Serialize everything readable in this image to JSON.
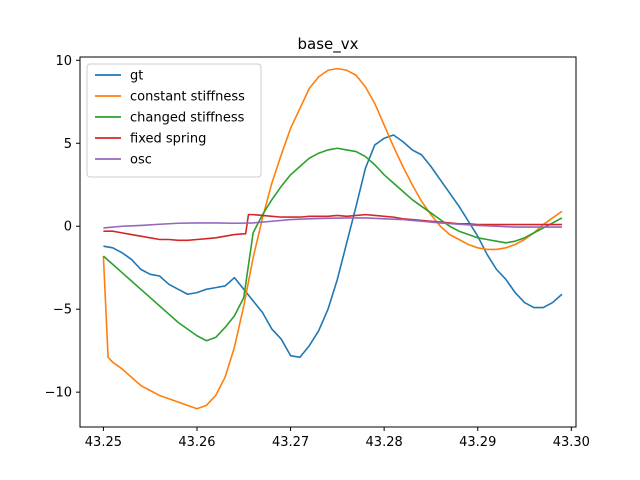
{
  "chart_data": {
    "type": "line",
    "title": "base_vx",
    "xlabel": "",
    "ylabel": "",
    "xlim": [
      43.2475,
      43.3005
    ],
    "ylim": [
      -12.1,
      10.2
    ],
    "xticks": [
      "43.25",
      "43.26",
      "43.27",
      "43.28",
      "43.29",
      "43.30"
    ],
    "xtick_values": [
      43.25,
      43.26,
      43.27,
      43.28,
      43.29,
      43.3
    ],
    "yticks": [
      "10",
      "5",
      "0",
      "−5",
      "−10"
    ],
    "ytick_values": [
      10,
      5,
      0,
      -5,
      -10
    ],
    "grid": false,
    "legend_position": "top-left",
    "series": [
      {
        "name": "gt",
        "color": "#1f77b4",
        "x": [
          43.25,
          43.251,
          43.252,
          43.253,
          43.254,
          43.255,
          43.256,
          43.257,
          43.258,
          43.259,
          43.26,
          43.261,
          43.262,
          43.263,
          43.264,
          43.265,
          43.266,
          43.267,
          43.268,
          43.269,
          43.27,
          43.271,
          43.272,
          43.273,
          43.274,
          43.275,
          43.276,
          43.277,
          43.278,
          43.279,
          43.28,
          43.281,
          43.282,
          43.283,
          43.284,
          43.285,
          43.286,
          43.287,
          43.288,
          43.289,
          43.29,
          43.291,
          43.292,
          43.293,
          43.294,
          43.295,
          43.296,
          43.297,
          43.298,
          43.299
        ],
        "values": [
          -1.2,
          -1.3,
          -1.6,
          -2.0,
          -2.6,
          -2.9,
          -3.0,
          -3.5,
          -3.8,
          -4.1,
          -4.0,
          -3.8,
          -3.7,
          -3.6,
          -3.1,
          -3.8,
          -4.5,
          -5.2,
          -6.2,
          -6.8,
          -7.8,
          -7.9,
          -7.2,
          -6.3,
          -5.0,
          -3.2,
          -1.0,
          1.2,
          3.5,
          4.9,
          5.3,
          5.5,
          5.1,
          4.6,
          4.3,
          3.6,
          2.8,
          2.0,
          1.2,
          0.3,
          -0.6,
          -1.7,
          -2.6,
          -3.2,
          -4.0,
          -4.6,
          -4.9,
          -4.9,
          -4.6,
          -4.1
        ]
      },
      {
        "name": "constant stiffness",
        "color": "#ff7f0e",
        "x": [
          43.25,
          43.2505,
          43.251,
          43.252,
          43.253,
          43.254,
          43.255,
          43.256,
          43.257,
          43.258,
          43.259,
          43.26,
          43.261,
          43.262,
          43.263,
          43.264,
          43.265,
          43.266,
          43.267,
          43.268,
          43.269,
          43.27,
          43.271,
          43.272,
          43.273,
          43.274,
          43.275,
          43.276,
          43.277,
          43.278,
          43.279,
          43.28,
          43.281,
          43.282,
          43.283,
          43.284,
          43.285,
          43.286,
          43.287,
          43.288,
          43.289,
          43.29,
          43.291,
          43.292,
          43.293,
          43.294,
          43.295,
          43.296,
          43.297,
          43.298,
          43.299
        ],
        "values": [
          -1.8,
          -7.9,
          -8.2,
          -8.6,
          -9.1,
          -9.6,
          -9.9,
          -10.2,
          -10.4,
          -10.6,
          -10.8,
          -11.0,
          -10.8,
          -10.2,
          -9.1,
          -7.3,
          -4.8,
          -1.9,
          0.5,
          2.6,
          4.3,
          5.9,
          7.1,
          8.3,
          9.0,
          9.4,
          9.5,
          9.4,
          9.1,
          8.4,
          7.4,
          6.1,
          4.8,
          3.6,
          2.5,
          1.5,
          0.7,
          0.0,
          -0.5,
          -0.8,
          -1.1,
          -1.3,
          -1.4,
          -1.4,
          -1.3,
          -1.1,
          -0.8,
          -0.4,
          0.1,
          0.5,
          0.9
        ]
      },
      {
        "name": "changed stiffness",
        "color": "#2ca02c",
        "x": [
          43.25,
          43.251,
          43.252,
          43.253,
          43.254,
          43.255,
          43.256,
          43.257,
          43.258,
          43.259,
          43.26,
          43.261,
          43.262,
          43.263,
          43.264,
          43.265,
          43.266,
          43.267,
          43.268,
          43.269,
          43.27,
          43.271,
          43.272,
          43.273,
          43.274,
          43.275,
          43.276,
          43.277,
          43.278,
          43.279,
          43.28,
          43.281,
          43.282,
          43.283,
          43.284,
          43.285,
          43.286,
          43.287,
          43.288,
          43.289,
          43.29,
          43.291,
          43.292,
          43.293,
          43.294,
          43.295,
          43.296,
          43.297,
          43.298,
          43.299
        ],
        "values": [
          -1.8,
          -2.3,
          -2.8,
          -3.3,
          -3.8,
          -4.3,
          -4.8,
          -5.3,
          -5.8,
          -6.2,
          -6.6,
          -6.9,
          -6.7,
          -6.1,
          -5.4,
          -4.3,
          -0.4,
          0.7,
          1.6,
          2.4,
          3.1,
          3.6,
          4.1,
          4.4,
          4.6,
          4.7,
          4.6,
          4.5,
          4.2,
          3.7,
          3.1,
          2.6,
          2.1,
          1.6,
          1.2,
          0.8,
          0.4,
          0.0,
          -0.3,
          -0.5,
          -0.7,
          -0.8,
          -0.9,
          -1.0,
          -0.9,
          -0.7,
          -0.4,
          -0.1,
          0.2,
          0.5
        ]
      },
      {
        "name": "fixed spring",
        "color": "#d62728",
        "x": [
          43.25,
          43.251,
          43.252,
          43.253,
          43.254,
          43.255,
          43.256,
          43.257,
          43.258,
          43.259,
          43.26,
          43.261,
          43.262,
          43.263,
          43.264,
          43.2652,
          43.2655,
          43.266,
          43.267,
          43.268,
          43.269,
          43.27,
          43.271,
          43.272,
          43.273,
          43.274,
          43.275,
          43.276,
          43.277,
          43.278,
          43.279,
          43.28,
          43.281,
          43.282,
          43.283,
          43.284,
          43.285,
          43.286,
          43.287,
          43.288,
          43.289,
          43.29,
          43.291,
          43.292,
          43.293,
          43.294,
          43.295,
          43.296,
          43.297,
          43.298,
          43.299
        ],
        "values": [
          -0.3,
          -0.3,
          -0.4,
          -0.5,
          -0.6,
          -0.7,
          -0.8,
          -0.8,
          -0.85,
          -0.85,
          -0.8,
          -0.75,
          -0.7,
          -0.6,
          -0.5,
          -0.45,
          0.7,
          0.7,
          0.65,
          0.6,
          0.55,
          0.55,
          0.55,
          0.6,
          0.6,
          0.6,
          0.65,
          0.6,
          0.65,
          0.7,
          0.65,
          0.6,
          0.55,
          0.45,
          0.4,
          0.35,
          0.3,
          0.25,
          0.2,
          0.15,
          0.15,
          0.1,
          0.1,
          0.1,
          0.1,
          0.1,
          0.1,
          0.1,
          0.1,
          0.1,
          0.1
        ]
      },
      {
        "name": "osc",
        "color": "#9467bd",
        "x": [
          43.25,
          43.252,
          43.254,
          43.256,
          43.258,
          43.26,
          43.262,
          43.264,
          43.266,
          43.268,
          43.27,
          43.272,
          43.274,
          43.276,
          43.278,
          43.28,
          43.282,
          43.284,
          43.286,
          43.288,
          43.29,
          43.292,
          43.294,
          43.296,
          43.298,
          43.299
        ],
        "values": [
          -0.1,
          0.0,
          0.05,
          0.12,
          0.18,
          0.2,
          0.2,
          0.18,
          0.2,
          0.3,
          0.4,
          0.45,
          0.48,
          0.5,
          0.5,
          0.45,
          0.4,
          0.3,
          0.2,
          0.12,
          0.05,
          0.0,
          -0.05,
          -0.05,
          -0.05,
          -0.05
        ]
      }
    ]
  }
}
